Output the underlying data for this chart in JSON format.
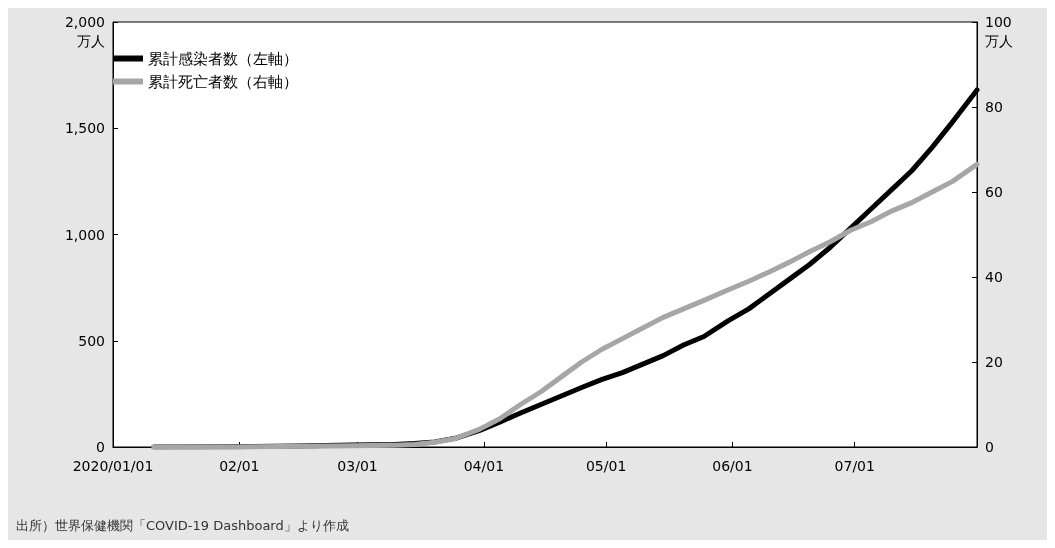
{
  "chart_data": {
    "type": "line",
    "ylabel": "万人",
    "y2label": "万人",
    "xlim": [
      "2020-01-01",
      "2020-07-31"
    ],
    "xticks": [
      {
        "value": "2020-01-01",
        "label": "2020/01/01"
      },
      {
        "value": "2020-02-01",
        "label": "02/01"
      },
      {
        "value": "2020-03-01",
        "label": "03/01"
      },
      {
        "value": "2020-04-01",
        "label": "04/01"
      },
      {
        "value": "2020-05-01",
        "label": "05/01"
      },
      {
        "value": "2020-06-01",
        "label": "06/01"
      },
      {
        "value": "2020-07-01",
        "label": "07/01"
      }
    ],
    "ylim": [
      0,
      2000
    ],
    "yticks": [
      0,
      500,
      {
        "value": 1000,
        "label": "1,000"
      },
      {
        "value": 1500,
        "label": "1,500"
      },
      {
        "value": 2000,
        "label": "2,000"
      }
    ],
    "y2lim": [
      0,
      100
    ],
    "y2ticks": [
      0,
      20,
      40,
      60,
      80,
      100
    ],
    "legend": "top left",
    "grid": false,
    "marker": "none",
    "line_style": "solid",
    "series": [
      {
        "name": "累計感染者数（左軸）",
        "color": "#000000",
        "x": [
          "2020-01-11",
          "2020-01-31",
          "2020-02-15",
          "2020-02-29",
          "2020-03-10",
          "2020-03-15",
          "2020-03-20",
          "2020-03-25",
          "2020-03-31",
          "2020-04-05",
          "2020-04-10",
          "2020-04-15",
          "2020-04-20",
          "2020-04-25",
          "2020-04-30",
          "2020-05-05",
          "2020-05-10",
          "2020-05-15",
          "2020-05-20",
          "2020-05-25",
          "2020-05-31",
          "2020-06-05",
          "2020-06-10",
          "2020-06-15",
          "2020-06-20",
          "2020-06-25",
          "2020-06-30",
          "2020-07-05",
          "2020-07-10",
          "2020-07-15",
          "2020-07-20",
          "2020-07-25",
          "2020-07-31"
        ],
        "values": [
          0,
          1,
          5,
          9,
          12,
          16,
          24,
          41,
          78,
          118,
          160,
          200,
          240,
          280,
          318,
          350,
          390,
          430,
          480,
          520,
          595,
          650,
          720,
          790,
          860,
          940,
          1030,
          1120,
          1210,
          1300,
          1410,
          1530,
          1680
        ]
      },
      {
        "name": "累計死亡者数（右軸）",
        "color": "#a6a6a6",
        "axis": "y2",
        "x": [
          "2020-01-11",
          "2020-01-31",
          "2020-02-29",
          "2020-03-10",
          "2020-03-15",
          "2020-03-20",
          "2020-03-25",
          "2020-03-31",
          "2020-04-05",
          "2020-04-10",
          "2020-04-15",
          "2020-04-20",
          "2020-04-25",
          "2020-04-30",
          "2020-05-05",
          "2020-05-10",
          "2020-05-15",
          "2020-05-20",
          "2020-05-25",
          "2020-05-31",
          "2020-06-05",
          "2020-06-10",
          "2020-06-15",
          "2020-06-20",
          "2020-06-25",
          "2020-06-30",
          "2020-07-05",
          "2020-07-10",
          "2020-07-15",
          "2020-07-20",
          "2020-07-25",
          "2020-07-31"
        ],
        "values": [
          0,
          0,
          0.3,
          0.4,
          0.6,
          1.1,
          2,
          4.2,
          6.7,
          10,
          13,
          16.5,
          20,
          23,
          25.5,
          28,
          30.5,
          32.5,
          34.5,
          37,
          39,
          41.2,
          43.5,
          46,
          48.3,
          51,
          53,
          55.5,
          57.5,
          60,
          62.5,
          66.5
        ]
      }
    ],
    "annotations": [
      "出所）世界保健機関「COVID-19 Dashboard」より作成"
    ]
  }
}
